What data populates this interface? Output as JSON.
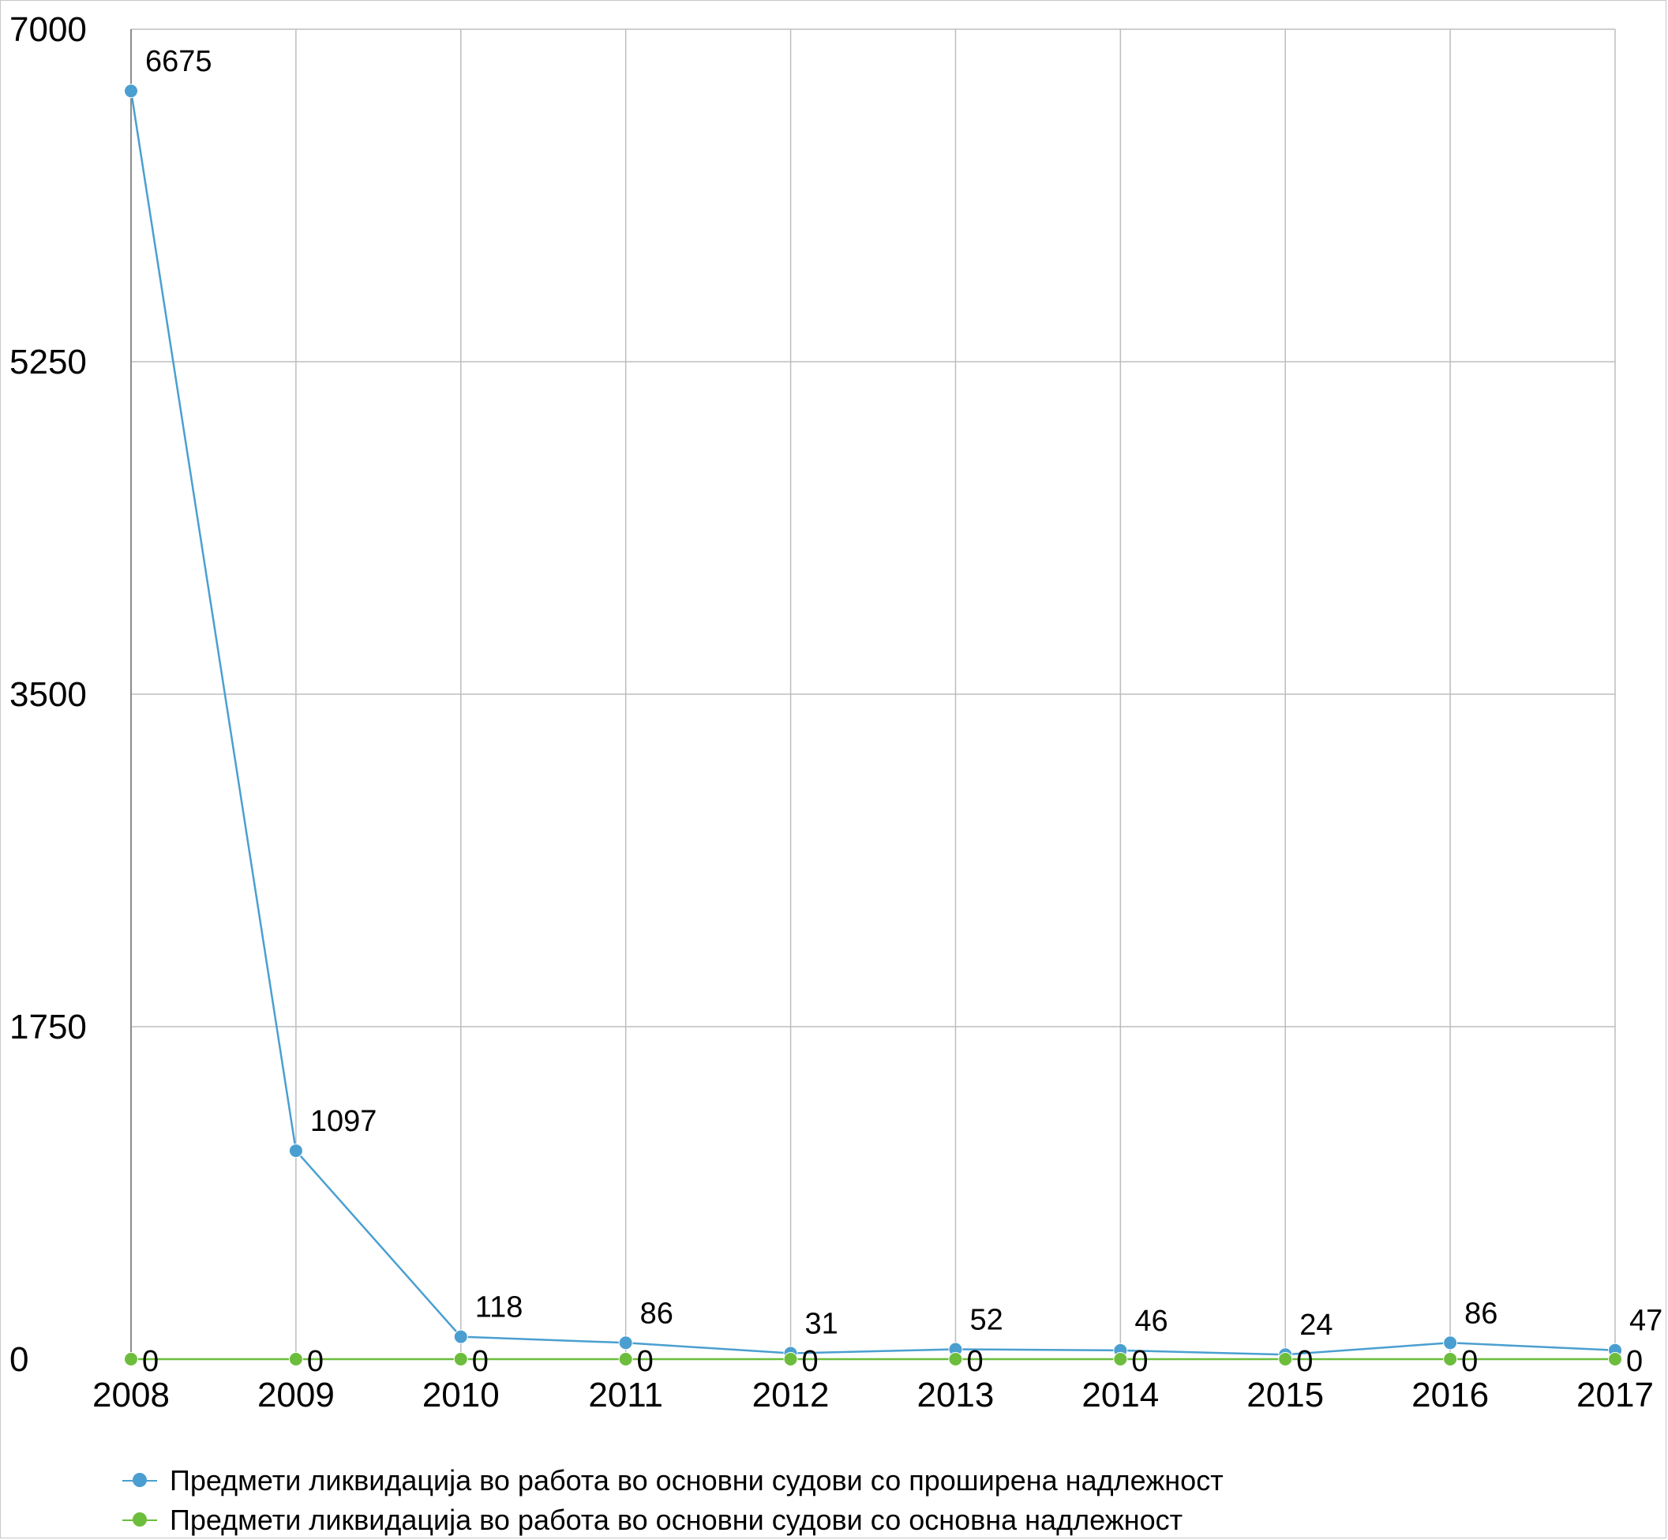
{
  "chart_data": {
    "type": "line",
    "title": "",
    "xlabel": "",
    "ylabel": "",
    "categories": [
      "2008",
      "2009",
      "2010",
      "2011",
      "2012",
      "2013",
      "2014",
      "2015",
      "2016",
      "2017"
    ],
    "ylim": [
      0,
      7000
    ],
    "yticks": [
      "0",
      "1750",
      "3500",
      "5250",
      "7000"
    ],
    "grid": true,
    "legend_position": "bottom",
    "series": [
      {
        "name": "Предмети ликвидација во работа во основни судови со проширена надлежност",
        "color": "#4a9fd0",
        "values": [
          6675,
          1097,
          118,
          86,
          31,
          52,
          46,
          24,
          86,
          47
        ],
        "labels": [
          "6675",
          "1097",
          "118",
          "86",
          "31",
          "52",
          "46",
          "24",
          "86",
          "47"
        ]
      },
      {
        "name": "Предмети ликвидација во работа во основни судови со основна надлежност",
        "color": "#6cbd3c",
        "values": [
          0,
          0,
          0,
          0,
          0,
          0,
          0,
          0,
          0,
          0
        ],
        "labels": [
          "0",
          "0",
          "0",
          "0",
          "0",
          "0",
          "0",
          "0",
          "0",
          "0"
        ]
      }
    ]
  }
}
